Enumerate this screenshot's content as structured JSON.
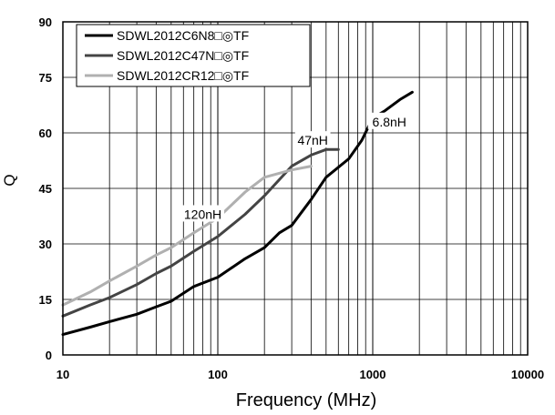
{
  "colors": {
    "background": "#ffffff",
    "grid": "#000000",
    "axis": "#000000"
  },
  "chart_data": {
    "type": "line",
    "xlabel": "Frequency (MHz)",
    "ylabel": "Q",
    "x_scale": "log",
    "xlim": [
      10,
      10000
    ],
    "ylim": [
      0,
      90
    ],
    "x_ticks": [
      10,
      100,
      1000,
      10000
    ],
    "x_tick_labels": [
      "10",
      "100",
      "1000",
      "10000"
    ],
    "y_ticks": [
      0,
      15,
      30,
      45,
      60,
      75,
      90
    ],
    "y_tick_labels": [
      "0",
      "15",
      "30",
      "45",
      "60",
      "75",
      "90"
    ],
    "grid": true,
    "legend_position": "top-left",
    "series": [
      {
        "name": "SDWL2012C6N8□◎TF",
        "color": "#000000",
        "points": [
          [
            10,
            5.5
          ],
          [
            15,
            7.5
          ],
          [
            20,
            9
          ],
          [
            30,
            11
          ],
          [
            40,
            13
          ],
          [
            50,
            14.5
          ],
          [
            70,
            18.5
          ],
          [
            100,
            21
          ],
          [
            150,
            26
          ],
          [
            200,
            29
          ],
          [
            250,
            33
          ],
          [
            300,
            35
          ],
          [
            400,
            42
          ],
          [
            500,
            48
          ],
          [
            700,
            53
          ],
          [
            850,
            58
          ],
          [
            1000,
            64
          ],
          [
            1200,
            66
          ],
          [
            1500,
            69
          ],
          [
            1800,
            71
          ]
        ]
      },
      {
        "name": "SDWL2012C47N□◎TF",
        "color": "#444444",
        "points": [
          [
            10,
            10.5
          ],
          [
            15,
            13.5
          ],
          [
            20,
            15.5
          ],
          [
            30,
            19
          ],
          [
            40,
            22
          ],
          [
            50,
            24
          ],
          [
            70,
            28
          ],
          [
            100,
            32
          ],
          [
            150,
            38
          ],
          [
            200,
            43
          ],
          [
            300,
            51
          ],
          [
            400,
            54
          ],
          [
            500,
            55.5
          ],
          [
            600,
            55.5
          ]
        ]
      },
      {
        "name": "SDWL2012CR12□◎TF",
        "color": "#b0b0b0",
        "points": [
          [
            10,
            13.5
          ],
          [
            15,
            17
          ],
          [
            20,
            20
          ],
          [
            30,
            24
          ],
          [
            40,
            27
          ],
          [
            50,
            29
          ],
          [
            70,
            33
          ],
          [
            100,
            37
          ],
          [
            150,
            44
          ],
          [
            200,
            48
          ],
          [
            300,
            50
          ],
          [
            400,
            51
          ]
        ]
      }
    ],
    "annotations": [
      {
        "text": "6.8nH",
        "x": 1280,
        "y": 63
      },
      {
        "text": "47nH",
        "x": 410,
        "y": 58
      },
      {
        "text": "120nH",
        "x": 80,
        "y": 38
      }
    ]
  }
}
